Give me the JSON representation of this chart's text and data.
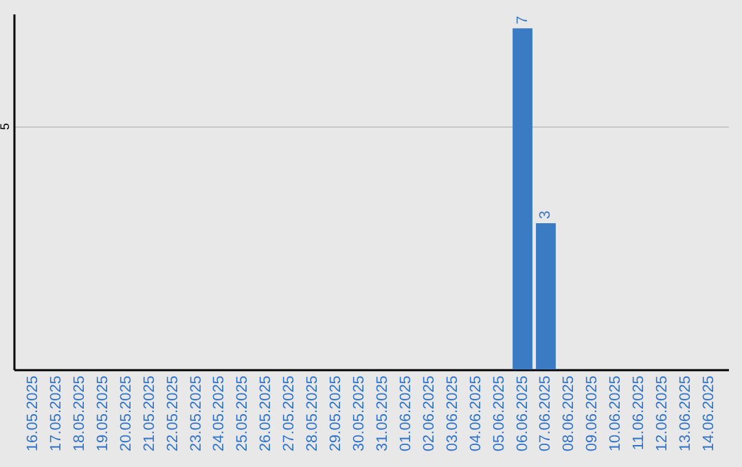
{
  "chart_data": {
    "type": "bar",
    "categories": [
      "16.05.2025",
      "17.05.2025",
      "18.05.2025",
      "19.05.2025",
      "20.05.2025",
      "21.05.2025",
      "22.05.2025",
      "23.05.2025",
      "24.05.2025",
      "25.05.2025",
      "26.05.2025",
      "27.05.2025",
      "28.05.2025",
      "29.05.2025",
      "30.05.2025",
      "31.05.2025",
      "01.06.2025",
      "02.06.2025",
      "03.06.2025",
      "04.06.2025",
      "05.06.2025",
      "06.06.2025",
      "07.06.2025",
      "08.06.2025",
      "09.06.2025",
      "10.06.2025",
      "11.06.2025",
      "12.06.2025",
      "13.06.2025",
      "14.06.2025"
    ],
    "values": [
      null,
      null,
      null,
      null,
      null,
      null,
      null,
      null,
      null,
      null,
      null,
      null,
      null,
      null,
      null,
      null,
      null,
      null,
      null,
      null,
      null,
      7,
      3,
      null,
      null,
      null,
      null,
      null,
      null,
      null
    ],
    "color": "#3a7bc4",
    "ylim": [
      0,
      7.3
    ],
    "yticks": [
      5
    ],
    "grid": "y",
    "data_labels": true
  }
}
